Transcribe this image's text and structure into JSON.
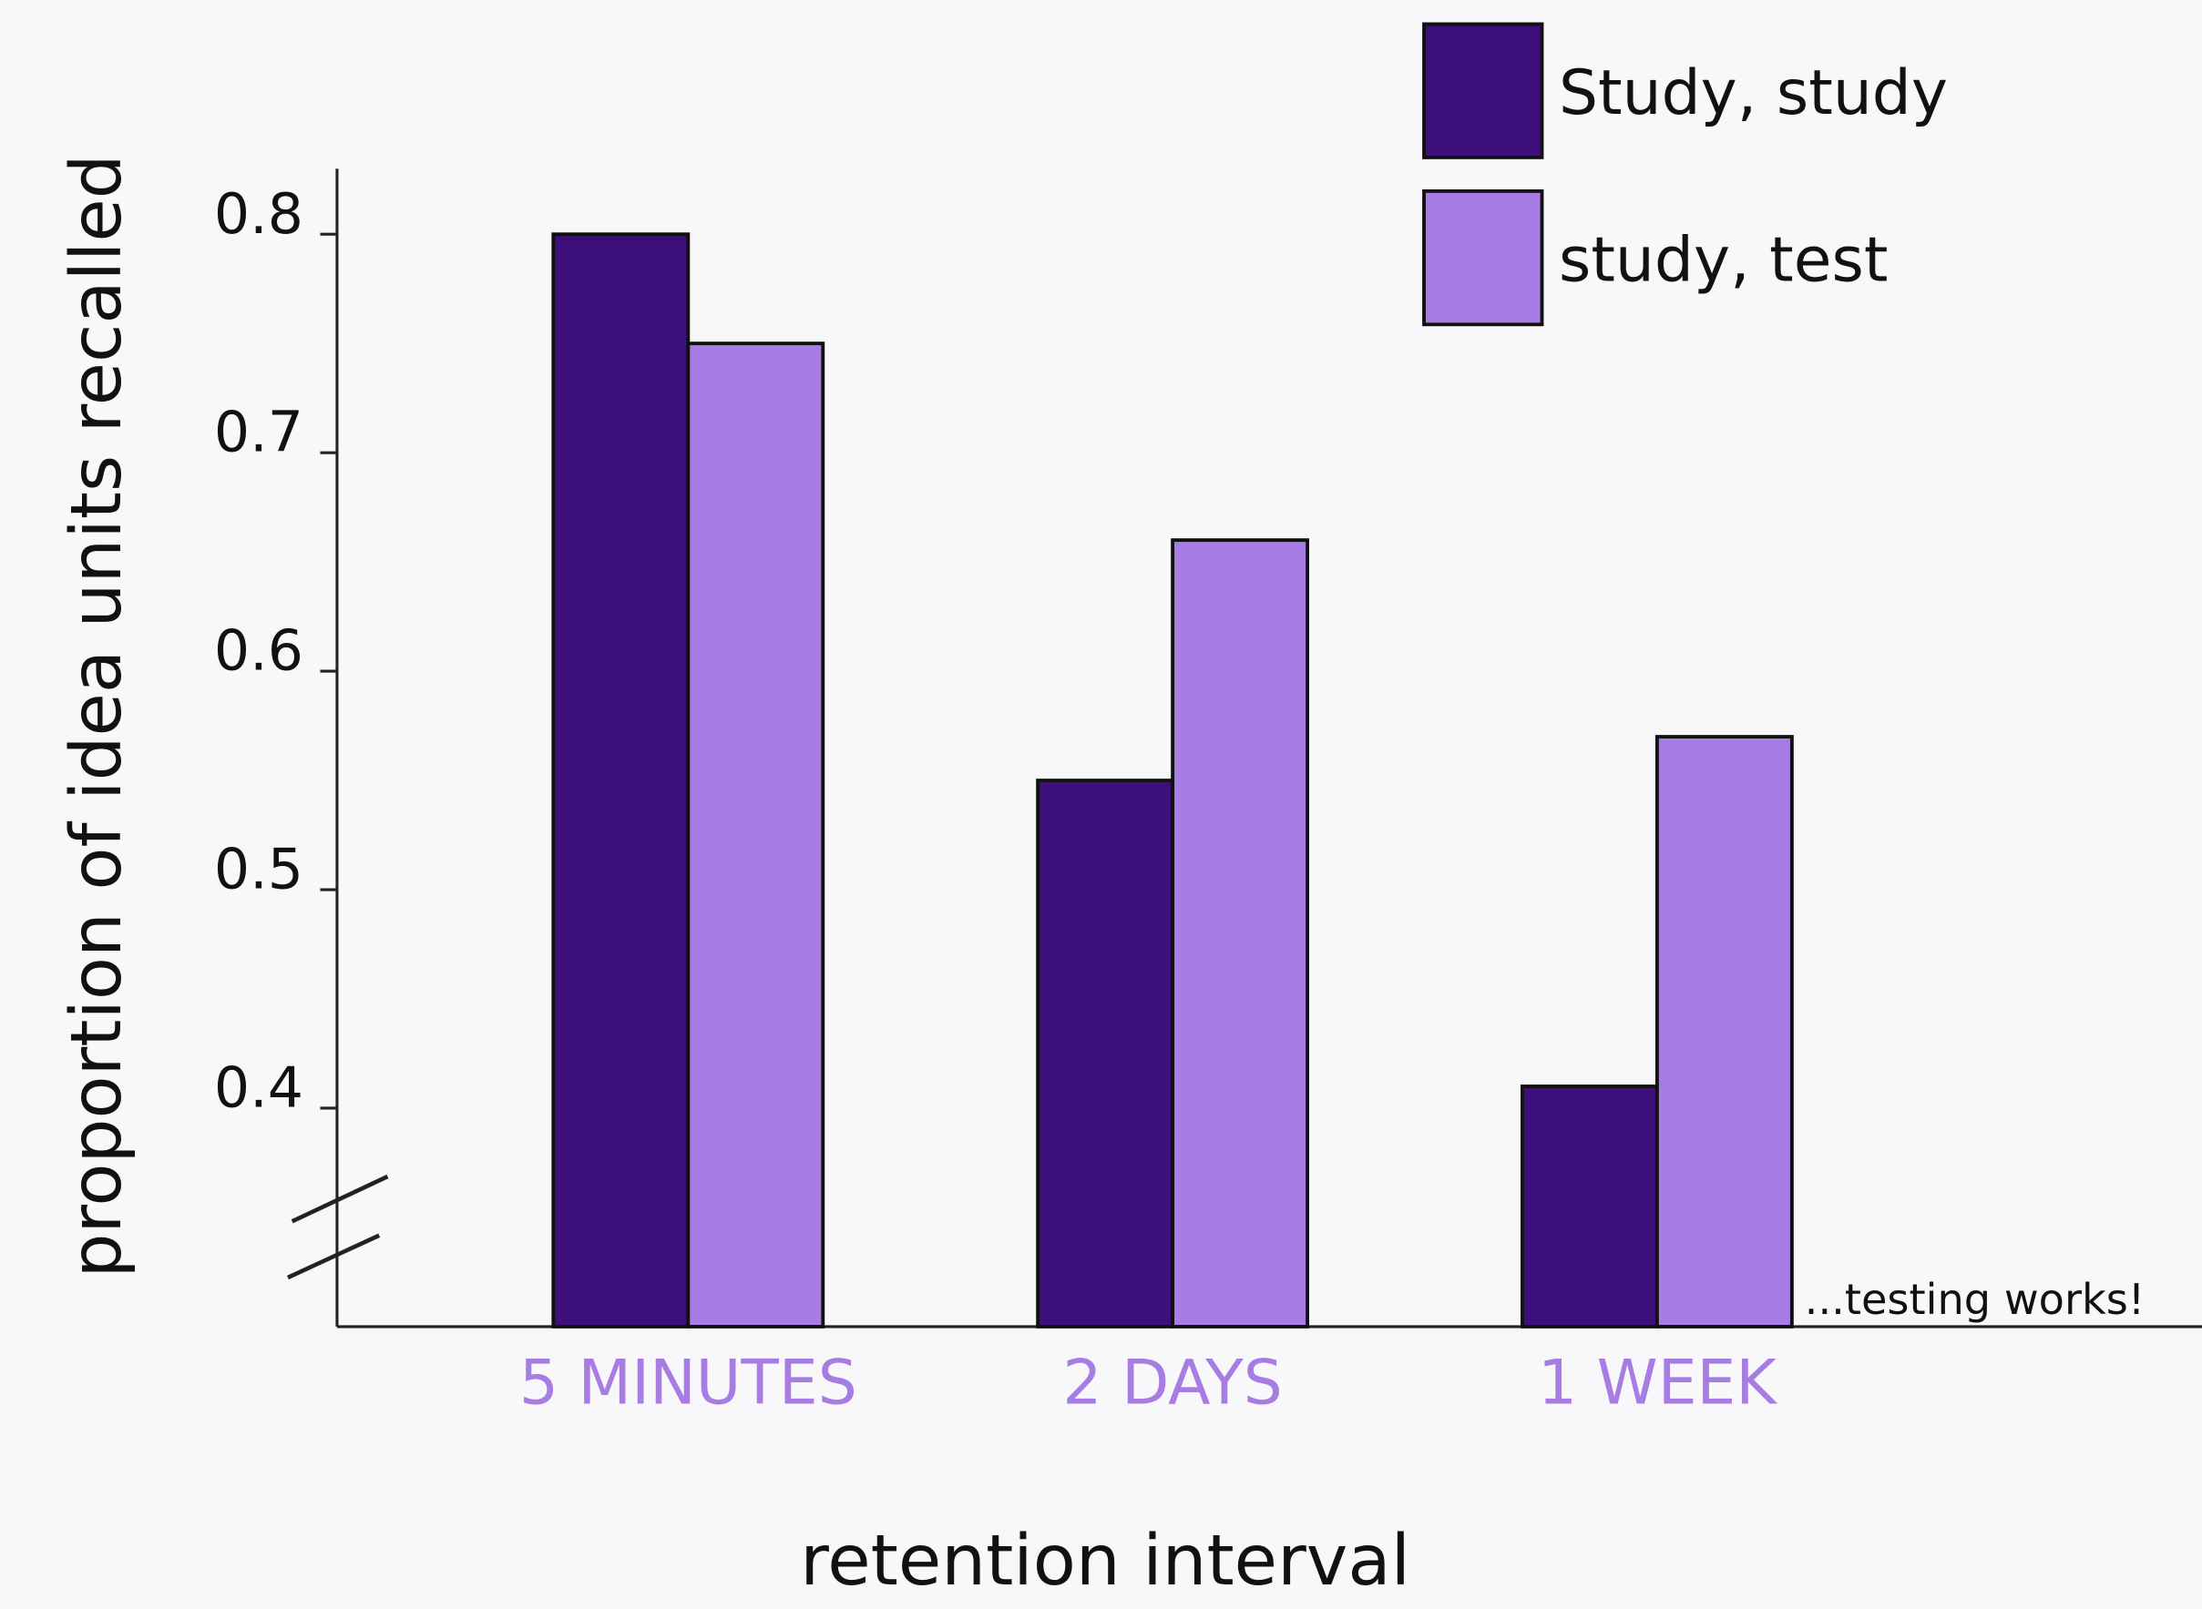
{
  "chart_data": {
    "type": "bar",
    "y_label": "proportion of idea units recalled",
    "x_label": "retention interval",
    "annotation": "...testing works!",
    "categories": [
      "5 MINUTES",
      "2 DAYS",
      "1 WEEK"
    ],
    "series": [
      {
        "name": "Study, study",
        "color": "#3d0f7a",
        "values": [
          0.8,
          0.55,
          0.41
        ]
      },
      {
        "name": "study, test",
        "color": "#a77de3",
        "values": [
          0.75,
          0.66,
          0.57
        ]
      }
    ],
    "ylim": [
      0.3,
      0.83
    ],
    "yticks": [
      0.4,
      0.5,
      0.6,
      0.7,
      0.8
    ],
    "legend": "top-right"
  }
}
